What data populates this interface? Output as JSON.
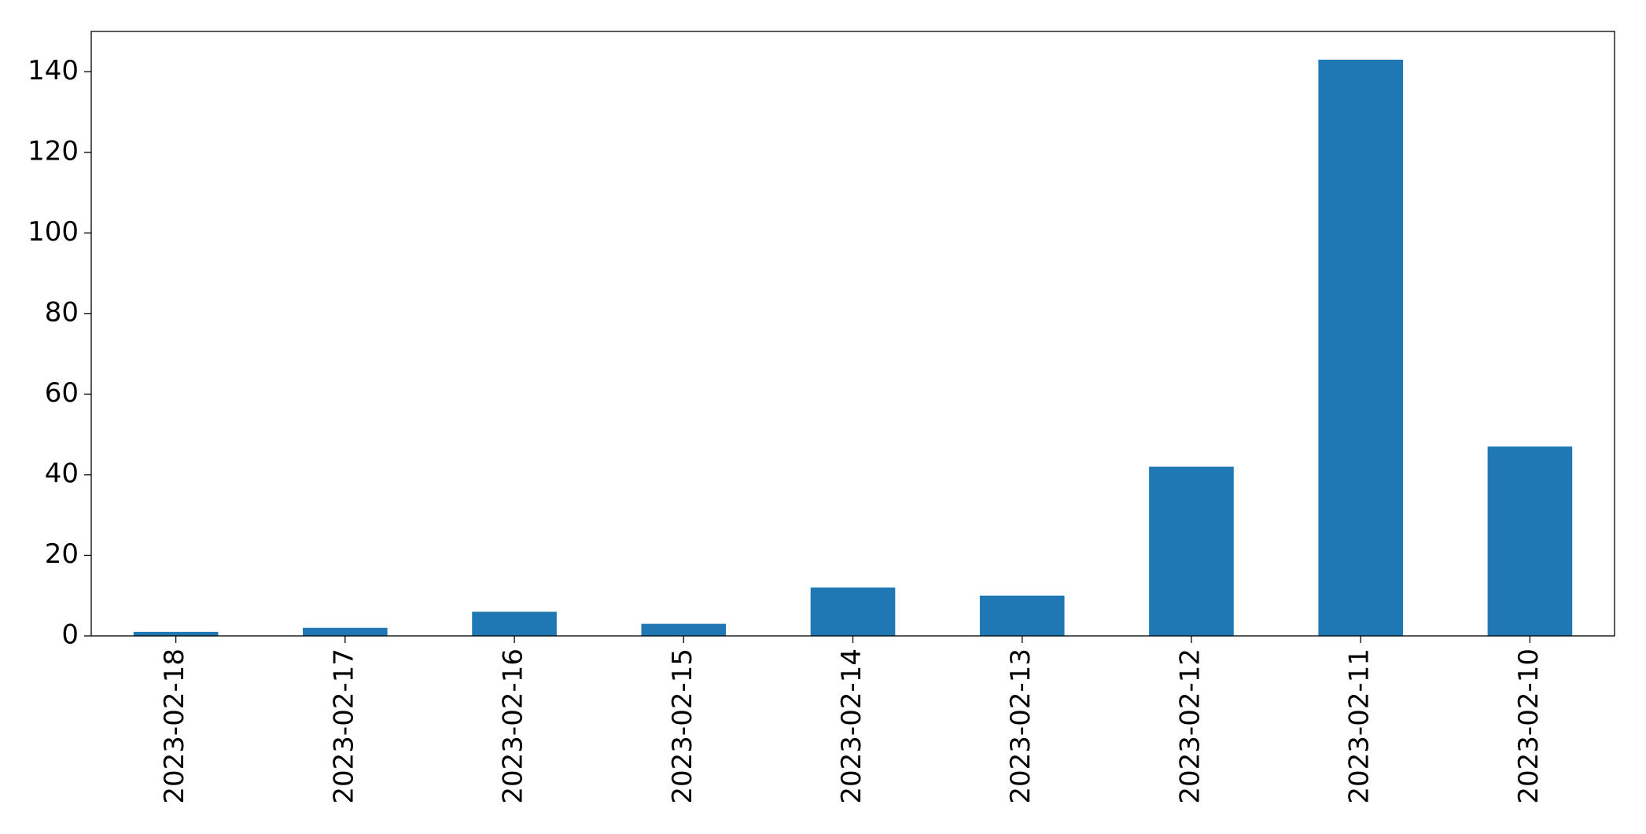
{
  "chart_data": {
    "type": "bar",
    "categories": [
      "2023-02-18",
      "2023-02-17",
      "2023-02-16",
      "2023-02-15",
      "2023-02-14",
      "2023-02-13",
      "2023-02-12",
      "2023-02-11",
      "2023-02-10"
    ],
    "values": [
      1,
      2,
      6,
      3,
      12,
      10,
      42,
      143,
      47
    ],
    "color": "#1f77b4",
    "ylim": [
      0,
      150
    ],
    "yticks": [
      0,
      20,
      40,
      60,
      80,
      100,
      120,
      140
    ],
    "grid": false
  }
}
